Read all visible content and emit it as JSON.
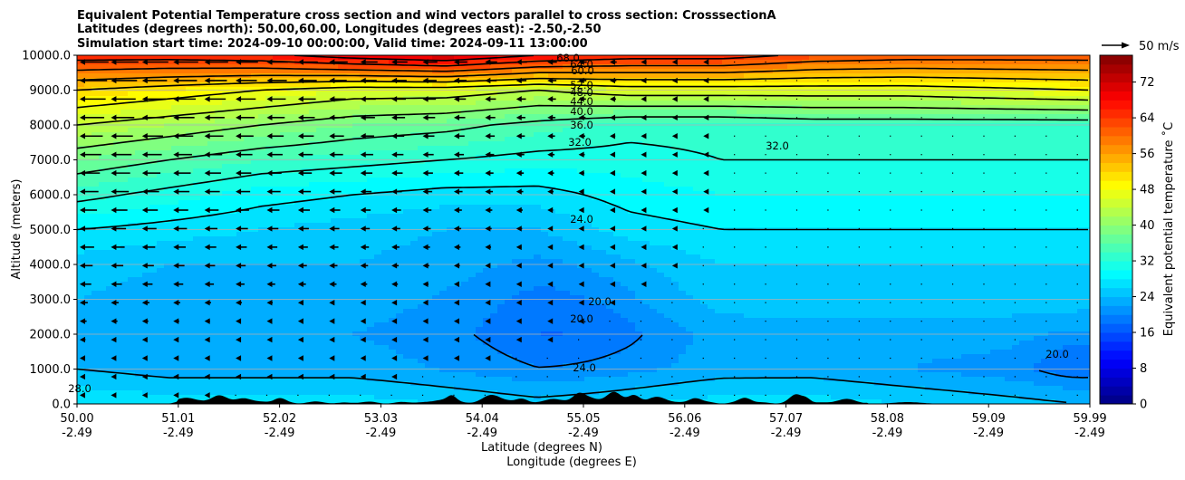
{
  "chart_data": {
    "type": "contour",
    "title_lines": [
      "Equivalent Potential Temperature cross section and wind vectors parallel to cross section: CrosssectionA",
      "Latitudes (degrees north): 50.00,60.00, Longitudes (degrees east): -2.50,-2.50",
      "Simulation start time: 2024-09-10 00:00:00, Valid time: 2024-09-11 13:00:00"
    ],
    "xlabel": "Latitude (degrees N)",
    "xlabel2": "Longitude (degrees E)",
    "ylabel": "Altitude (meters)",
    "x_ticks": [
      {
        "lat": "50.00",
        "lon": "-2.49"
      },
      {
        "lat": "51.01",
        "lon": "-2.49"
      },
      {
        "lat": "52.02",
        "lon": "-2.49"
      },
      {
        "lat": "53.03",
        "lon": "-2.49"
      },
      {
        "lat": "54.04",
        "lon": "-2.49"
      },
      {
        "lat": "55.05",
        "lon": "-2.49"
      },
      {
        "lat": "56.06",
        "lon": "-2.49"
      },
      {
        "lat": "57.07",
        "lon": "-2.49"
      },
      {
        "lat": "58.08",
        "lon": "-2.49"
      },
      {
        "lat": "59.09",
        "lon": "-2.49"
      },
      {
        "lat": "59.99",
        "lon": "-2.49"
      }
    ],
    "xlim": [
      50.0,
      59.99
    ],
    "y_ticks": [
      "0.0",
      "1000.0",
      "2000.0",
      "3000.0",
      "4000.0",
      "5000.0",
      "6000.0",
      "7000.0",
      "8000.0",
      "9000.0",
      "10000.0"
    ],
    "ylim": [
      0,
      10000
    ],
    "grid": "horizontal",
    "colorbar": {
      "label": "Equivalent potential temperature $^\\circ$C",
      "label_display": "Equivalent potential temperature ˚C",
      "ticks": [
        "0",
        "8",
        "16",
        "24",
        "32",
        "40",
        "48",
        "56",
        "64",
        "72"
      ],
      "range": [
        0,
        78
      ],
      "colormap": "jet"
    },
    "quiver_key": {
      "label": "50 m/s",
      "value": 50
    },
    "field_levels_C": [
      {
        "z": 0,
        "values": [
          28,
          27,
          27,
          27,
          26,
          25,
          26,
          27,
          27,
          26,
          25,
          24
        ]
      },
      {
        "z": 1000,
        "values": [
          24,
          23,
          23,
          23,
          22,
          21,
          22,
          23,
          23,
          22,
          21,
          20
        ]
      },
      {
        "z": 2000,
        "values": [
          23,
          22,
          22,
          22,
          21,
          20,
          21,
          23,
          23,
          23,
          23,
          22
        ]
      },
      {
        "z": 3000,
        "values": [
          24,
          23,
          23,
          23,
          22,
          21,
          23,
          25,
          25,
          25,
          25,
          25
        ]
      },
      {
        "z": 4000,
        "values": [
          25,
          24,
          24,
          24,
          23,
          22,
          24,
          26,
          26,
          26,
          26,
          26
        ]
      },
      {
        "z": 5000,
        "values": [
          28,
          27,
          26,
          25,
          24,
          24,
          27,
          28,
          28,
          28,
          28,
          28
        ]
      },
      {
        "z": 6000,
        "values": [
          33,
          31,
          29,
          28,
          27,
          27,
          29,
          30,
          30,
          30,
          30,
          30
        ]
      },
      {
        "z": 7000,
        "values": [
          38,
          36,
          34,
          33,
          32,
          31,
          31,
          32,
          32,
          32,
          32,
          32
        ]
      },
      {
        "z": 8000,
        "values": [
          44,
          42,
          40,
          38,
          37,
          35,
          33,
          33,
          34,
          34,
          34,
          34
        ]
      },
      {
        "z": 9000,
        "values": [
          52,
          50,
          48,
          46,
          46,
          44,
          46,
          46,
          46,
          46,
          47,
          48
        ]
      },
      {
        "z": 10000,
        "values": [
          66,
          66,
          67,
          70,
          72,
          68,
          66,
          66,
          63,
          62,
          62,
          62
        ]
      }
    ],
    "contour_labels": [
      "68.0",
      "64.0",
      "60.0",
      "52.0",
      "48.0",
      "44.0",
      "40.0",
      "36.0",
      "32.0",
      "32.0",
      "24.0",
      "20.0",
      "20.0",
      "20.0",
      "24.0",
      "28.0"
    ],
    "terrain": "black filled orography along bottom"
  }
}
